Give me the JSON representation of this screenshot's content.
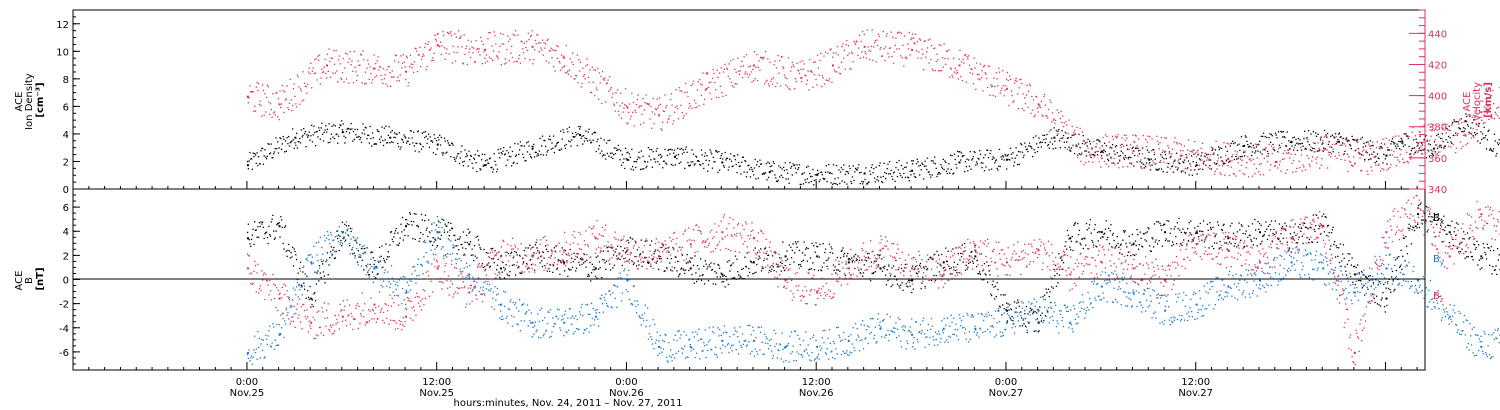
{
  "chart_data": [
    {
      "type": "scatter",
      "panel": "top",
      "ylabel": "ACE\nIon Density\n[cm-3]",
      "ylabel_lines": [
        "ACE",
        "Ion Density",
        "[cm⁻³]"
      ],
      "ylim": [
        0,
        13
      ],
      "yticks": [
        0,
        2,
        4,
        6,
        8,
        10,
        12
      ],
      "y2label_lines": [
        "ACE",
        "Velocity",
        "[km/s]"
      ],
      "y2lim": [
        340,
        455
      ],
      "y2ticks": [
        340,
        360,
        380,
        400,
        420,
        440
      ],
      "x_hours": [
        0,
        5,
        10,
        15,
        20,
        25,
        30,
        35,
        40,
        45,
        50,
        55,
        60,
        65,
        70,
        75,
        80
      ],
      "series": [
        {
          "name": "Ion Density",
          "color": "#000000",
          "axis": "left",
          "values": [
            1.8,
            3.8,
            4.2,
            3.8,
            3.3,
            1.8,
            3.0,
            4.0,
            2.2,
            2.4,
            2.0,
            1.3,
            1.1,
            1.2,
            1.4,
            2.0,
            2.2,
            3.8,
            2.8,
            2.2,
            1.8,
            3.2,
            3.5,
            3.5,
            2.5,
            3.5,
            3.0,
            5.0,
            2.2
          ],
          "x": [
            0,
            3,
            6,
            9,
            12,
            15,
            18,
            21,
            24,
            27,
            30,
            33,
            36,
            39,
            42,
            45,
            48,
            51,
            54,
            57,
            60,
            63,
            66,
            69,
            72,
            73,
            75,
            77,
            80
          ]
        },
        {
          "name": "Velocity",
          "color": "#e0305a",
          "axis": "right",
          "values": [
            400,
            395,
            420,
            418,
            416,
            433,
            430,
            432,
            425,
            393,
            388,
            405,
            420,
            412,
            420,
            432,
            430,
            420,
            405,
            395,
            365,
            365,
            362,
            360,
            358,
            365,
            360,
            370,
            375,
            390,
            400
          ],
          "x": [
            0,
            2,
            5,
            8,
            10,
            12,
            15,
            18,
            20,
            24,
            26,
            29,
            32,
            35,
            37,
            39,
            42,
            45,
            48,
            50,
            53,
            56,
            59,
            62,
            65,
            68,
            71,
            74,
            77,
            78,
            80
          ]
        }
      ]
    },
    {
      "type": "scatter",
      "panel": "bottom",
      "ylabel_lines": [
        "ACE",
        "B",
        "[nT]"
      ],
      "ylim": [
        -7.5,
        7.5
      ],
      "yticks": [
        -6,
        -4,
        -2,
        0,
        2,
        4,
        6
      ],
      "series": [
        {
          "name": "Bx",
          "color": "#000000",
          "x": [
            0,
            2,
            4,
            6,
            8,
            10,
            12,
            14,
            16,
            18,
            20,
            22,
            24,
            26,
            28,
            30,
            32,
            34,
            36,
            38,
            40,
            42,
            44,
            46,
            48,
            50,
            52,
            54,
            56,
            58,
            60,
            62,
            64,
            66,
            68,
            70,
            72,
            74,
            76,
            78,
            80
          ],
          "values": [
            3.5,
            4.5,
            -1.5,
            4.0,
            1.0,
            4.5,
            4.0,
            3.0,
            1.0,
            2.0,
            1.5,
            1.0,
            2.5,
            2.0,
            1.0,
            0.5,
            1.5,
            2.0,
            2.0,
            1.5,
            1.0,
            0.0,
            1.5,
            2.0,
            -2.5,
            -3.5,
            3.5,
            4.0,
            3.0,
            4.0,
            4.0,
            3.5,
            4.0,
            3.5,
            4.5,
            0.5,
            -1.5,
            5.5,
            4.0,
            2.0,
            1.0
          ]
        },
        {
          "name": "By",
          "color": "#1478d2",
          "x": [
            0,
            2,
            4,
            6,
            8,
            10,
            12,
            14,
            16,
            18,
            20,
            22,
            24,
            26,
            28,
            30,
            32,
            34,
            36,
            38,
            40,
            42,
            44,
            46,
            48,
            50,
            52,
            54,
            56,
            58,
            60,
            62,
            64,
            66,
            68,
            70,
            72,
            74,
            76,
            78,
            80
          ],
          "values": [
            -6.0,
            -4.5,
            1.5,
            4.0,
            1.0,
            -1.0,
            4.0,
            0.5,
            -2.0,
            -3.5,
            -3.5,
            -3.0,
            0.0,
            -5.5,
            -5.5,
            -5.0,
            -5.0,
            -5.5,
            -5.5,
            -5.0,
            -4.0,
            -4.5,
            -4.0,
            -4.0,
            -3.5,
            -2.5,
            -3.5,
            -0.5,
            -1.0,
            -2.5,
            -2.0,
            -0.5,
            0.0,
            1.5,
            1.0,
            -1.0,
            1.0,
            0.0,
            -3.0,
            -5.5,
            -5.0
          ]
        },
        {
          "name": "Bz",
          "color": "#e0305a",
          "x": [
            0,
            2,
            4,
            6,
            8,
            10,
            12,
            14,
            16,
            18,
            20,
            22,
            24,
            26,
            28,
            30,
            32,
            34,
            36,
            38,
            40,
            42,
            44,
            46,
            48,
            50,
            52,
            54,
            56,
            58,
            60,
            62,
            64,
            66,
            68,
            70,
            72,
            74,
            76,
            78,
            80
          ],
          "values": [
            1.0,
            -1.5,
            -3.5,
            -3.0,
            -2.0,
            -3.0,
            1.0,
            -1.0,
            2.0,
            2.0,
            2.5,
            3.5,
            2.5,
            2.0,
            3.0,
            4.0,
            3.5,
            0.0,
            -1.0,
            1.0,
            2.5,
            1.0,
            0.5,
            2.5,
            1.5,
            2.5,
            0.5,
            1.5,
            1.0,
            0.0,
            3.0,
            2.5,
            1.5,
            3.5,
            4.5,
            -6.0,
            4.0,
            6.0,
            2.0,
            5.5,
            3.5
          ]
        }
      ]
    }
  ],
  "labels": {
    "bx": "B",
    "bx_sub": "x",
    "by": "B",
    "by_sub": "y",
    "bz": "B",
    "bz_sub": "z"
  },
  "x_axis": {
    "range_hours": [
      0,
      85.5
    ],
    "ticks": [
      {
        "hour": 0,
        "line1": "0:00",
        "line2": "Nov.25"
      },
      {
        "hour": 12,
        "line1": "12:00",
        "line2": "Nov.25"
      },
      {
        "hour": 24,
        "line1": "0:00",
        "line2": "Nov.26"
      },
      {
        "hour": 36,
        "line1": "12:00",
        "line2": "Nov.26"
      },
      {
        "hour": 48,
        "line1": "0:00",
        "line2": "Nov.27"
      },
      {
        "hour": 60,
        "line1": "12:00",
        "line2": "Nov.27"
      }
    ],
    "origin_hour_offset": -11,
    "title": "hours:minutes, Nov. 24, 2011 – Nov. 27, 2011"
  }
}
